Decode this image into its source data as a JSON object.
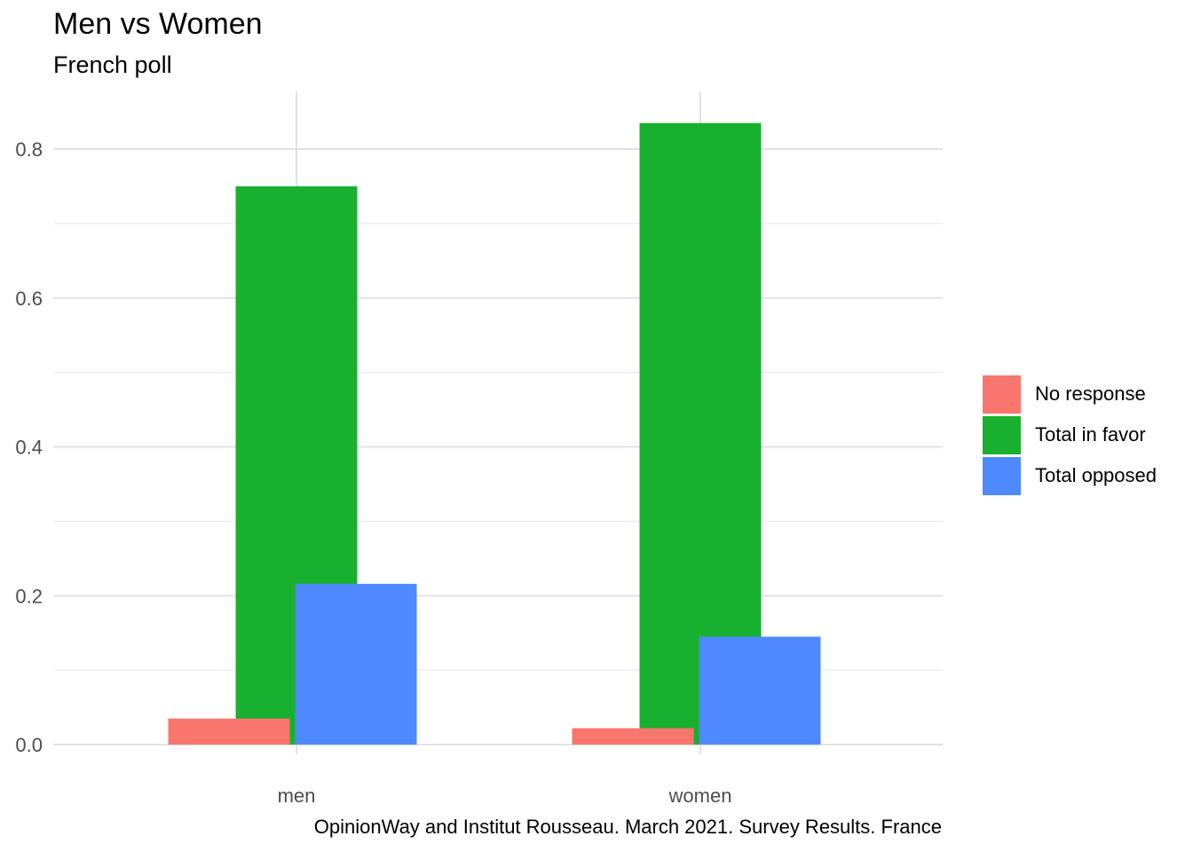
{
  "chart_data": {
    "type": "bar",
    "title": "Men vs Women",
    "subtitle": "French poll",
    "caption": "OpinionWay and Institut Rousseau. March 2021. Survey Results. France",
    "xlabel": "",
    "ylabel": "",
    "categories": [
      "men",
      "women"
    ],
    "ylim": [
      0,
      0.875
    ],
    "yticks": [
      0.0,
      0.2,
      0.4,
      0.6,
      0.8
    ],
    "ytick_labels": [
      "0.0",
      "0.2",
      "0.4",
      "0.6",
      "0.8"
    ],
    "grid": true,
    "legend_position": "right",
    "series": [
      {
        "name": "No response",
        "color": "#F8766D",
        "values": [
          0.035,
          0.022
        ]
      },
      {
        "name": "Total in favor",
        "color": "#1AB02F",
        "values": [
          0.75,
          0.835
        ]
      },
      {
        "name": "Total opposed",
        "color": "#4F89FF",
        "values": [
          0.216,
          0.145
        ]
      }
    ]
  }
}
